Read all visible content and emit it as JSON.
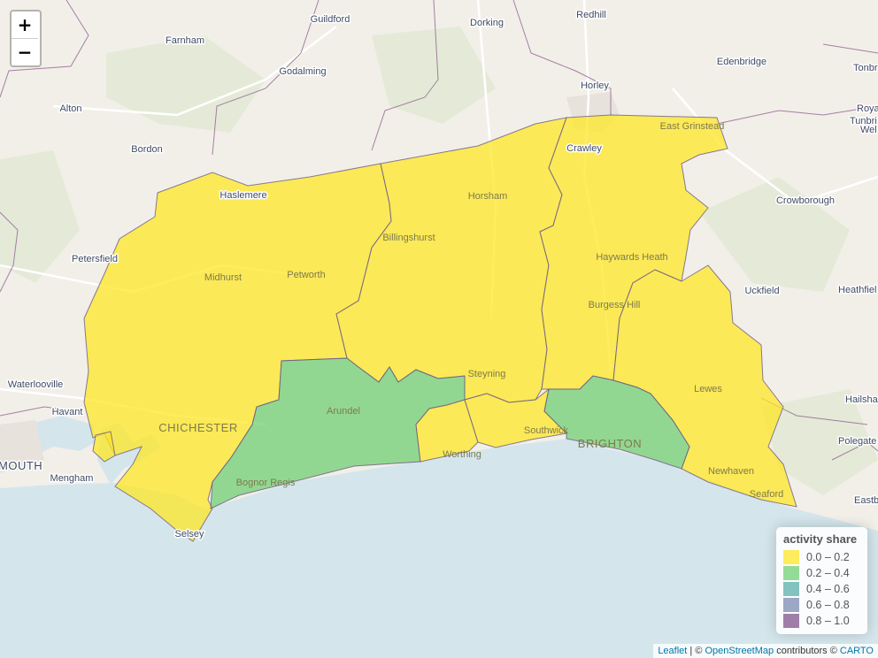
{
  "map": {
    "places": [
      "Guildford",
      "Dorking",
      "Redhill",
      "Farnham",
      "Godalming",
      "Edenbridge",
      "Horley",
      "Tonbr",
      "Alton",
      "Roya",
      "Tunbri",
      "Wel",
      "Bordon",
      "Crawley",
      "East Grinstead",
      "Haslemere",
      "Horsham",
      "Crowborough",
      "Billingshurst",
      "Petersfield",
      "Midhurst",
      "Petworth",
      "Haywards Heath",
      "Uckfield",
      "Heathfiel",
      "Burgess Hill",
      "Waterlooville",
      "Steyning",
      "Lewes",
      "Havant",
      "Arundel",
      "Hailsha",
      "CHICHESTER",
      "Southwick",
      "Polegate",
      "MOUTH",
      "BRIGHTON",
      "Worthing",
      "Mengham",
      "Bognor Regis",
      "Newhaven",
      "Seaford",
      "Eastb",
      "Selsey"
    ]
  },
  "legend": {
    "title": "activity share",
    "items": [
      {
        "label": "0.0 – 0.2",
        "color": "#fde725"
      },
      {
        "label": "0.2 – 0.4",
        "color": "#5ec962"
      },
      {
        "label": "0.4 – 0.6",
        "color": "#21918c"
      },
      {
        "label": "0.6 – 0.8",
        "color": "#3b528b"
      },
      {
        "label": "0.8 – 1.0",
        "color": "#440154"
      }
    ]
  },
  "zoom": {
    "in": "+",
    "out": "−"
  },
  "attribution": {
    "leaflet": "Leaflet",
    "sep": " | © ",
    "osm": "OpenStreetMap",
    "contrib": " contributors © ",
    "carto": "CARTO"
  }
}
